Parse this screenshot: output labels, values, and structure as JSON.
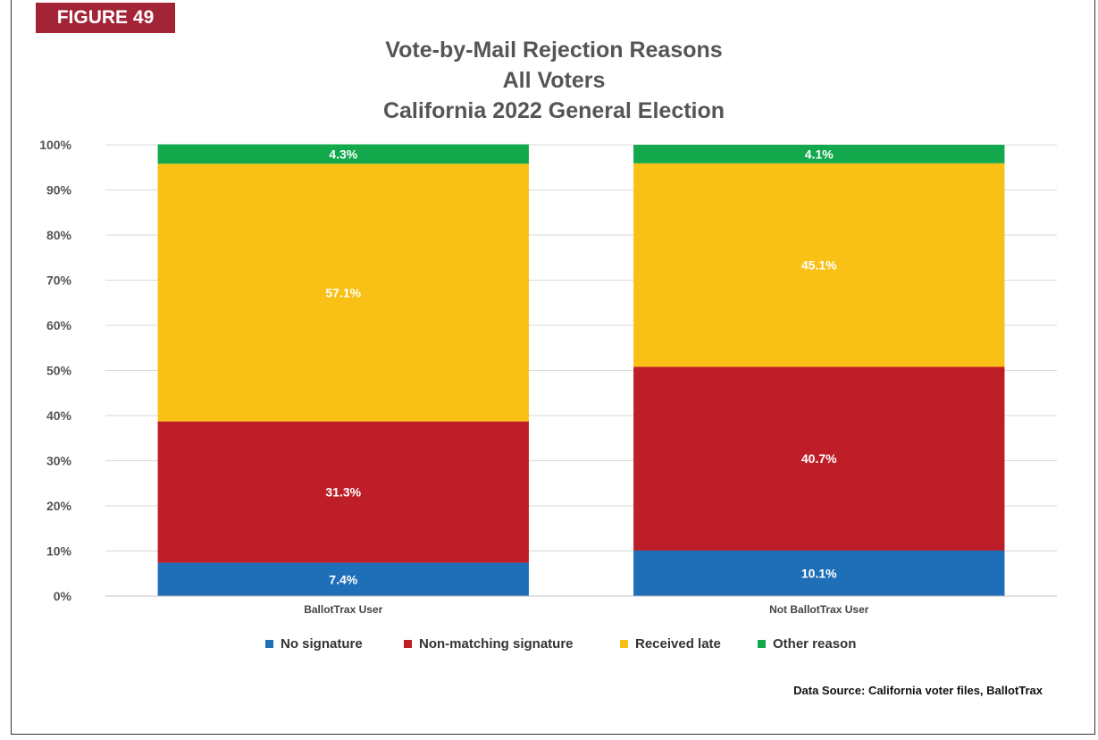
{
  "figure_label": "FIGURE 49",
  "title_lines": [
    "Vote-by-Mail Rejection Reasons",
    "All Voters",
    "California 2022 General Election"
  ],
  "source_note": "Data Source: California voter files, BallotTrax",
  "chart_data": {
    "type": "bar",
    "stacked": true,
    "categories": [
      "BallotTrax User",
      "Not BallotTrax User"
    ],
    "series": [
      {
        "name": "No signature",
        "values": [
          7.4,
          10.1
        ],
        "labels": [
          "7.4%",
          "10.1%"
        ],
        "color": "#1f6fb8"
      },
      {
        "name": "Non-matching signature",
        "values": [
          31.3,
          40.7
        ],
        "labels": [
          "31.3%",
          "40.7%"
        ],
        "color": "#be1e27"
      },
      {
        "name": "Received late",
        "values": [
          57.1,
          45.1
        ],
        "labels": [
          "57.1%",
          "45.1%"
        ],
        "color": "#f9c015"
      },
      {
        "name": "Other reason",
        "values": [
          4.3,
          4.1
        ],
        "labels": [
          "4.3%",
          "4.1%"
        ],
        "color": "#12a84b"
      }
    ],
    "ylim": [
      0,
      100
    ],
    "yticks": [
      "0%",
      "10%",
      "20%",
      "30%",
      "40%",
      "50%",
      "60%",
      "70%",
      "80%",
      "90%",
      "100%"
    ],
    "grid": true,
    "legend_position": "bottom"
  }
}
